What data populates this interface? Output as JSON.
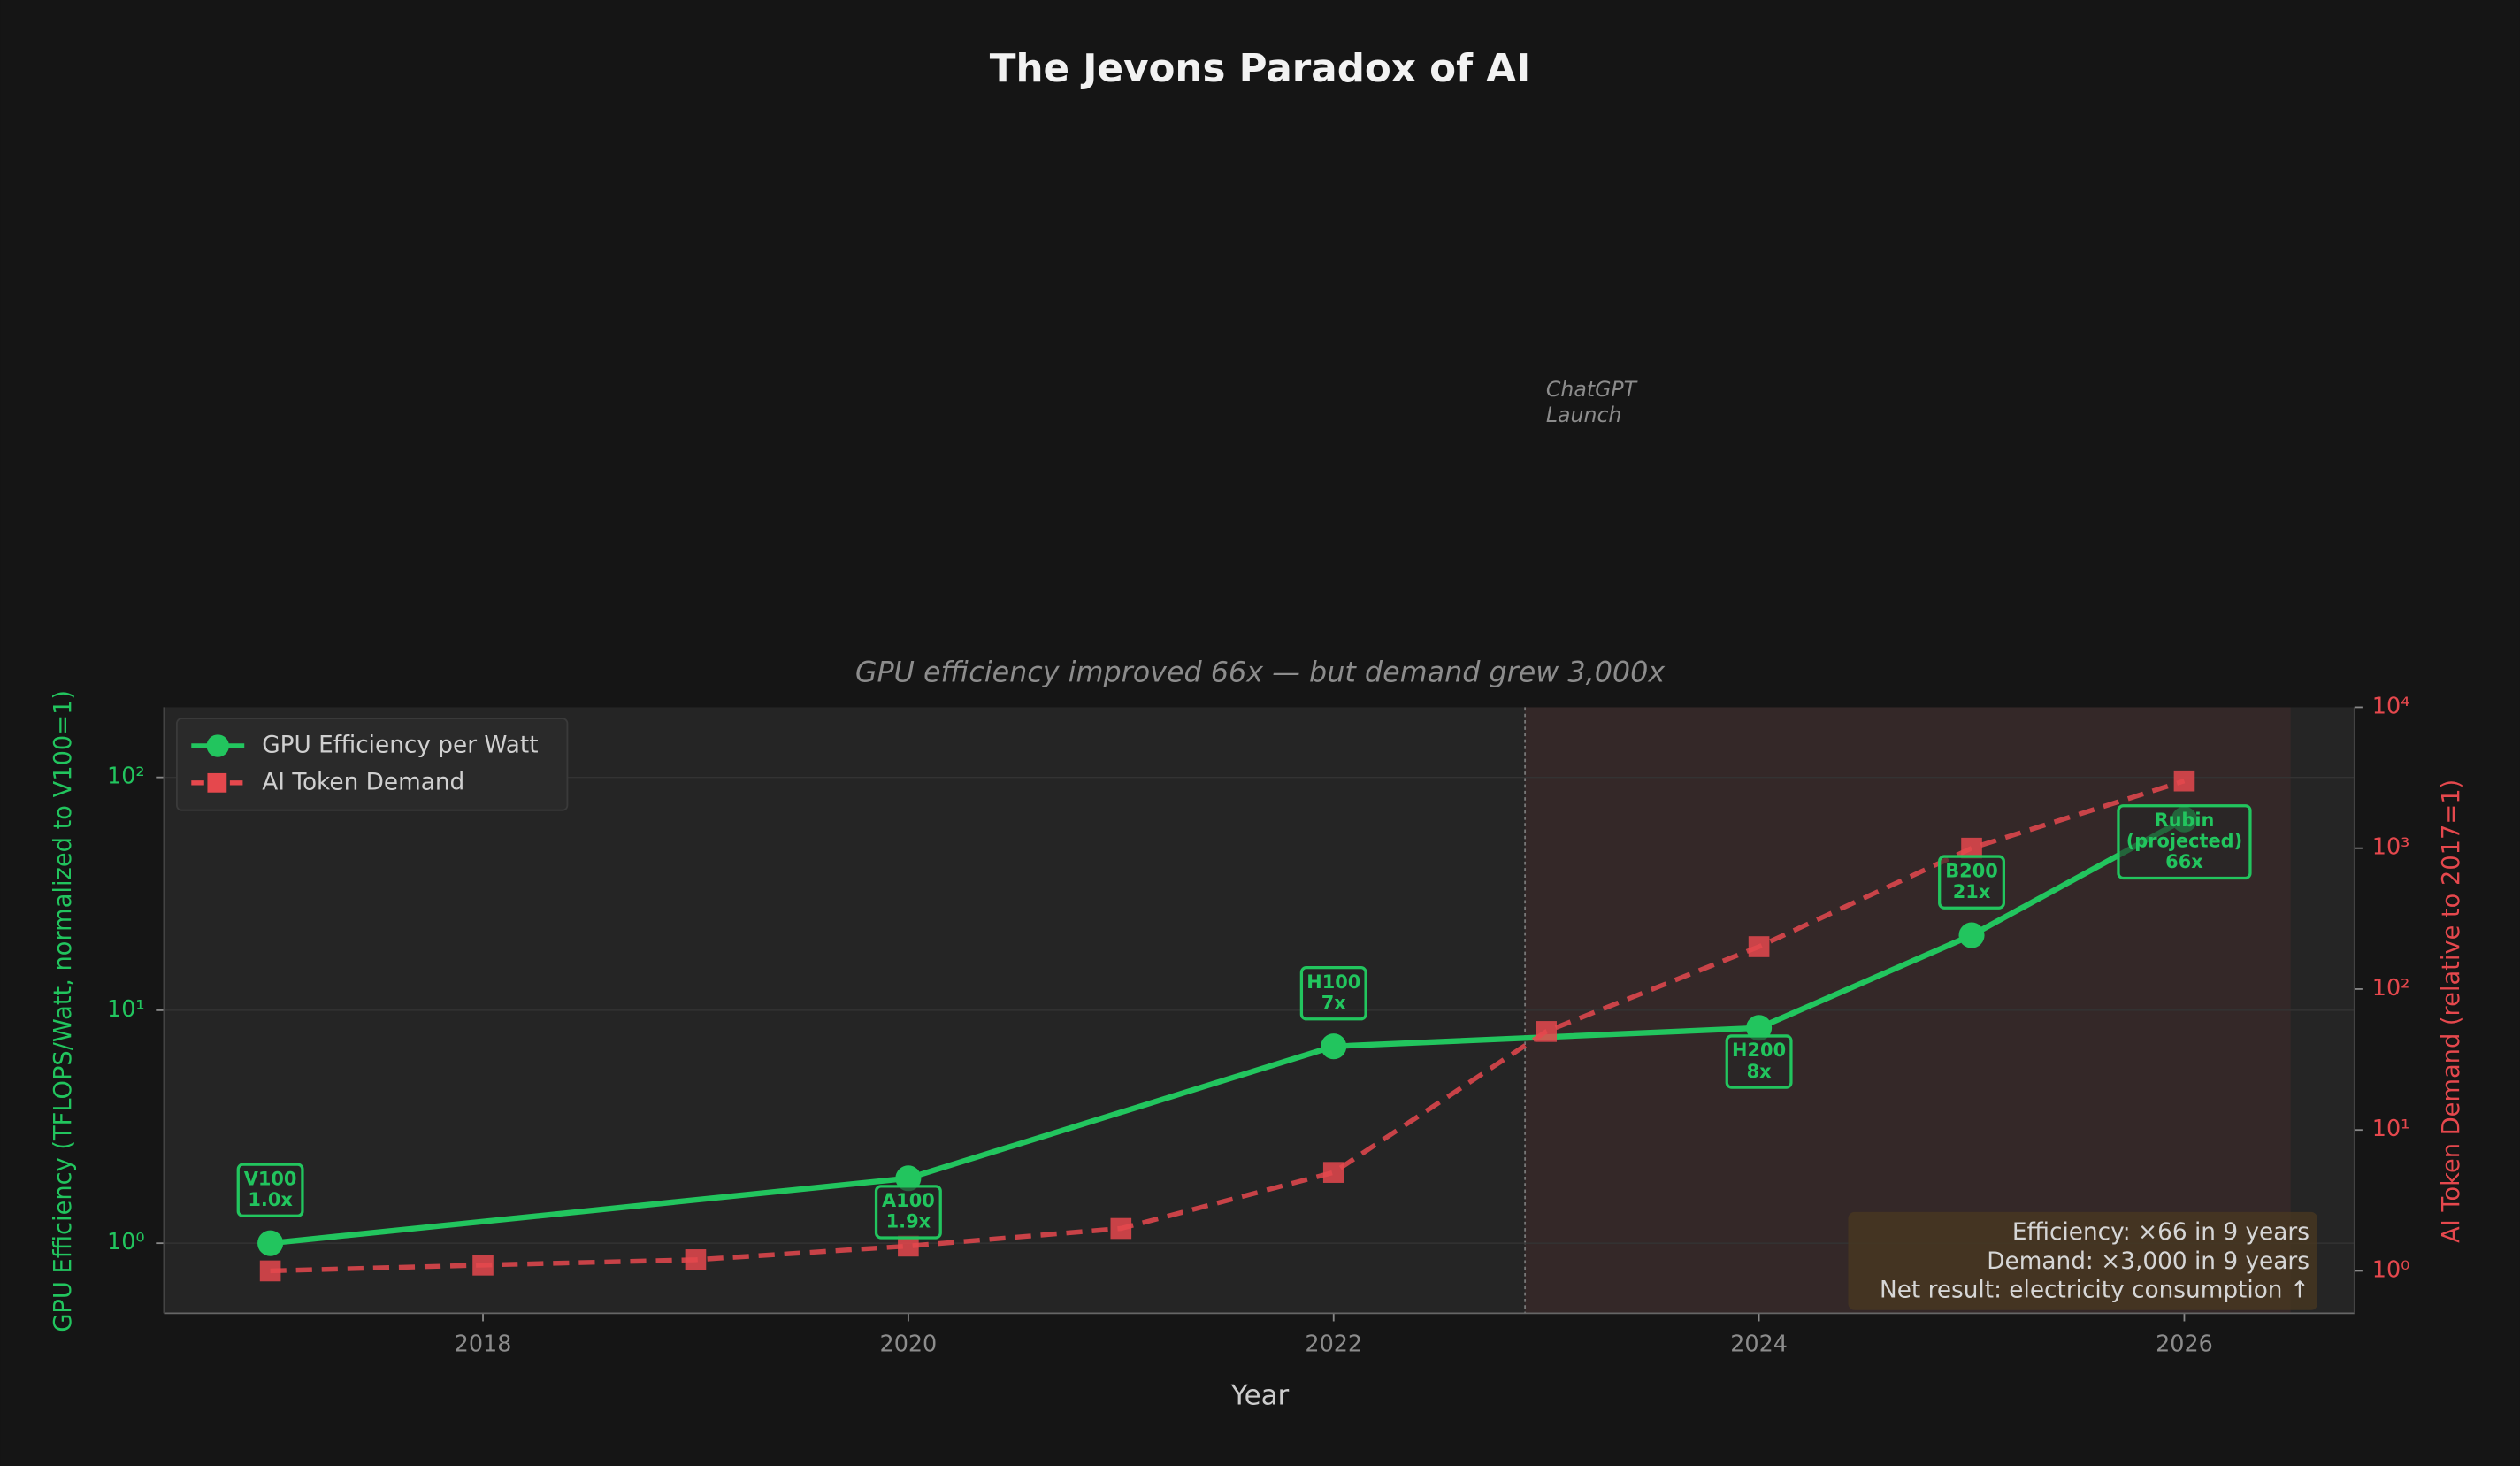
{
  "chart_data": {
    "type": "line",
    "title": "The Jevons Paradox of AI",
    "subtitle": "GPU efficiency improved 66x — but demand grew 3,000x",
    "xlabel": "Year",
    "ylabel": "GPU Efficiency (TFLOPS/Watt, normalized to V100=1)",
    "y2label": "AI Token Demand (relative to 2017=1)",
    "xlim": [
      2016.5,
      2026.8
    ],
    "xticks": [
      2018,
      2020,
      2022,
      2024,
      2026
    ],
    "ylim": [
      0.5,
      200
    ],
    "yscale": "log",
    "yticks": [
      {
        "value": 1,
        "label": "10⁰"
      },
      {
        "value": 10,
        "label": "10¹"
      },
      {
        "value": 100,
        "label": "10²"
      }
    ],
    "y2lim": [
      0.5,
      10000
    ],
    "y2scale": "log",
    "y2ticks": [
      {
        "value": 1,
        "label": "10⁰"
      },
      {
        "value": 10,
        "label": "10¹"
      },
      {
        "value": 100,
        "label": "10²"
      },
      {
        "value": 1000,
        "label": "10³"
      },
      {
        "value": 10000,
        "label": "10⁴"
      }
    ],
    "grid": true,
    "legend": "upper left",
    "series": [
      {
        "name": "GPU Efficiency per Watt",
        "color": "#22c55e",
        "marker": "circle",
        "linestyle": "solid",
        "x": [
          2017,
          2020,
          2022,
          2024,
          2025,
          2026
        ],
        "values": [
          1.0,
          1.9,
          7,
          8.4,
          21,
          66
        ],
        "point_labels": [
          [
            "V100",
            "1.0x"
          ],
          [
            "A100",
            "1.9x"
          ],
          [
            "H100",
            "7x"
          ],
          [
            "H200",
            "8x"
          ],
          [
            "B200",
            "21x"
          ],
          [
            "Rubin",
            "(projected)",
            "66x"
          ]
        ]
      },
      {
        "name": "AI Token Demand",
        "color": "#e5484d",
        "marker": "square",
        "linestyle": "dashed",
        "axis": "y2",
        "x": [
          2017,
          2018,
          2019,
          2020,
          2021,
          2022,
          2023,
          2024,
          2025,
          2026
        ],
        "values": [
          1,
          1.1,
          1.2,
          1.5,
          2,
          5,
          50,
          200,
          1000,
          3000
        ]
      }
    ],
    "event_line": 2022.9,
    "highlight_region": [
      2022.9,
      2026.5
    ],
    "event_annotation": [
      "ChatGPT",
      "Launch"
    ],
    "summary": [
      "Efficiency: ×66 in 9 years",
      "Demand: ×3,000 in 9 years",
      "Net result: electricity consumption ↑"
    ]
  }
}
